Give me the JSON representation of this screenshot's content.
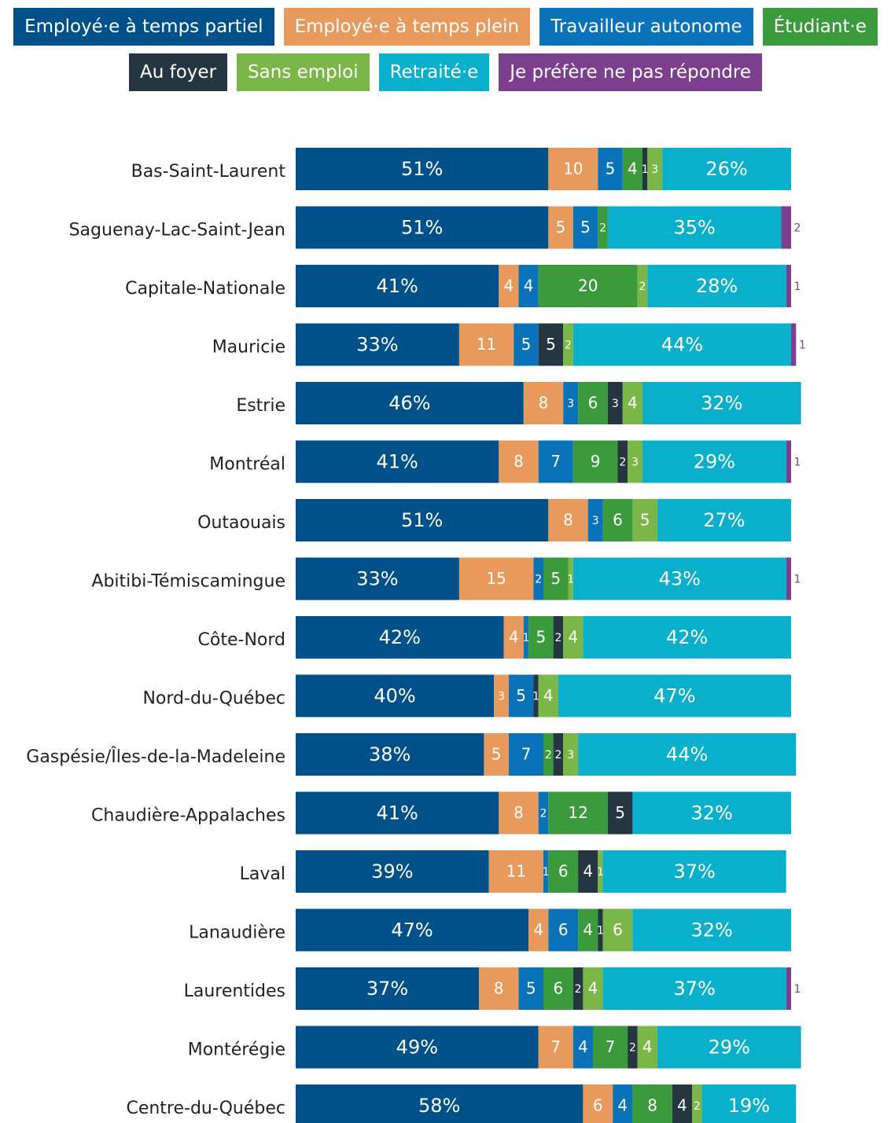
{
  "chart_data": {
    "type": "stacked_bar_horizontal",
    "categories": [
      "Bas-Saint-Laurent",
      "Saguenay-Lac-Saint-Jean",
      "Capitale-Nationale",
      "Mauricie",
      "Estrie",
      "Montréal",
      "Outaouais",
      "Abitibi-Témiscamingue",
      "Côte-Nord",
      "Nord-du-Québec",
      "Gaspésie/Îles-de-la-Madeleine",
      "Chaudière-Appalaches",
      "Laval",
      "Lanaudière",
      "Laurentides",
      "Montérégie",
      "Centre-du-Québec"
    ],
    "series": [
      {
        "name": "Employé·e à temps partiel",
        "color": "#00508a",
        "values": [
          51,
          51,
          41,
          33,
          46,
          41,
          51,
          33,
          42,
          40,
          38,
          41,
          39,
          47,
          37,
          49,
          58
        ],
        "value_labels": [
          "51%",
          "51%",
          "41%",
          "33%",
          "46%",
          "41%",
          "51%",
          "33%",
          "42%",
          "40%",
          "38%",
          "41%",
          "39%",
          "47%",
          "37%",
          "49%",
          "58%"
        ]
      },
      {
        "name": "Employé·e à temps plein",
        "color": "#e8995c",
        "values": [
          10,
          5,
          4,
          11,
          8,
          8,
          8,
          15,
          4,
          3,
          5,
          8,
          11,
          4,
          8,
          7,
          6
        ]
      },
      {
        "name": "Travailleur autonome",
        "color": "#0a72b8",
        "values": [
          5,
          5,
          4,
          5,
          3,
          7,
          3,
          2,
          1,
          5,
          7,
          2,
          1,
          6,
          5,
          4,
          4
        ]
      },
      {
        "name": "Étudiant·e",
        "color": "#3a9a3c",
        "values": [
          4,
          2,
          20,
          null,
          6,
          9,
          6,
          5,
          5,
          null,
          2,
          12,
          6,
          4,
          6,
          7,
          8
        ]
      },
      {
        "name": "Au foyer",
        "color": "#263640",
        "values": [
          1,
          null,
          null,
          5,
          3,
          2,
          null,
          null,
          2,
          1,
          2,
          5,
          4,
          1,
          2,
          2,
          4
        ]
      },
      {
        "name": "Sans emploi",
        "color": "#7ab648",
        "values": [
          3,
          null,
          2,
          2,
          4,
          3,
          5,
          1,
          4,
          4,
          3,
          null,
          1,
          6,
          4,
          4,
          2
        ]
      },
      {
        "name": "Retraité·e",
        "color": "#0aafcb",
        "values": [
          26,
          35,
          28,
          44,
          32,
          29,
          27,
          43,
          42,
          47,
          44,
          32,
          37,
          32,
          37,
          29,
          19
        ],
        "value_labels": [
          "26%",
          "35%",
          "28%",
          "44%",
          "32%",
          "29%",
          "27%",
          "43%",
          "42%",
          "47%",
          "44%",
          "32%",
          "37%",
          "32%",
          "37%",
          "29%",
          "19%"
        ]
      },
      {
        "name": "Je préfère ne pas répondre",
        "color": "#7b3f8e",
        "values": [
          null,
          2,
          1,
          1,
          null,
          1,
          null,
          1,
          null,
          null,
          null,
          null,
          null,
          null,
          1,
          null,
          null
        ]
      }
    ]
  }
}
